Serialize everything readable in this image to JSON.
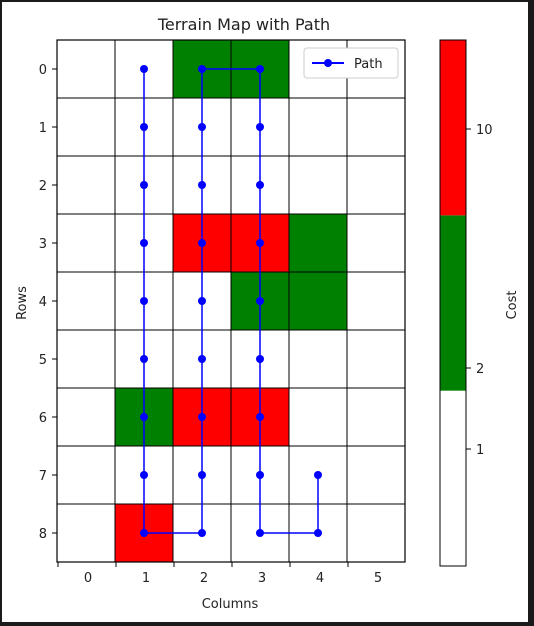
{
  "chart_data": {
    "type": "heatmap",
    "title": "Terrain Map with Path",
    "xlabel": "Columns",
    "ylabel": "Rows",
    "x_ticks": [
      "0",
      "1",
      "2",
      "3",
      "4",
      "5"
    ],
    "y_ticks": [
      "0",
      "1",
      "2",
      "3",
      "4",
      "5",
      "6",
      "7",
      "8"
    ],
    "grid": [
      [
        1,
        1,
        2,
        2,
        1,
        1
      ],
      [
        1,
        1,
        1,
        1,
        1,
        1
      ],
      [
        1,
        1,
        1,
        1,
        1,
        1
      ],
      [
        1,
        1,
        10,
        10,
        2,
        1
      ],
      [
        1,
        1,
        1,
        2,
        2,
        1
      ],
      [
        1,
        1,
        1,
        1,
        1,
        1
      ],
      [
        1,
        2,
        10,
        10,
        1,
        1
      ],
      [
        1,
        1,
        1,
        1,
        1,
        1
      ],
      [
        1,
        10,
        1,
        1,
        1,
        1
      ]
    ],
    "cost_colors": {
      "1": "#ffffff",
      "2": "#008000",
      "10": "#ff0000"
    },
    "path": {
      "name": "Path",
      "color": "#0000ff",
      "points": [
        [
          1,
          0
        ],
        [
          1,
          1
        ],
        [
          1,
          2
        ],
        [
          1,
          3
        ],
        [
          1,
          4
        ],
        [
          1,
          5
        ],
        [
          1,
          6
        ],
        [
          1,
          7
        ],
        [
          1,
          8
        ],
        [
          2,
          8
        ],
        [
          2,
          7
        ],
        [
          2,
          6
        ],
        [
          2,
          5
        ],
        [
          2,
          4
        ],
        [
          2,
          3
        ],
        [
          2,
          2
        ],
        [
          2,
          1
        ],
        [
          2,
          0
        ],
        [
          3,
          0
        ],
        [
          3,
          1
        ],
        [
          3,
          2
        ],
        [
          3,
          3
        ],
        [
          3,
          4
        ],
        [
          3,
          5
        ],
        [
          3,
          6
        ],
        [
          3,
          7
        ],
        [
          3,
          8
        ],
        [
          4,
          8
        ],
        [
          4,
          7
        ]
      ]
    },
    "legend": {
      "position": "top-right",
      "entries": [
        "Path"
      ]
    },
    "colorbar": {
      "label": "Cost",
      "ticks": [
        "1",
        "2",
        "10"
      ],
      "segments": [
        {
          "value": 1,
          "color": "#ffffff"
        },
        {
          "value": 2,
          "color": "#008000"
        },
        {
          "value": 10,
          "color": "#ff0000"
        }
      ]
    }
  }
}
